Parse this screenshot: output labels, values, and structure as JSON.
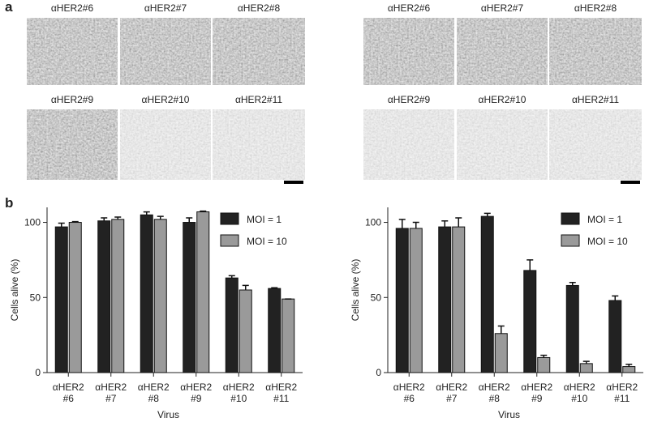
{
  "panel_labels": [
    "a",
    "b"
  ],
  "micrographs": {
    "left": [
      "αHER2#6",
      "αHER2#7",
      "αHER2#8",
      "αHER2#9",
      "αHER2#10",
      "αHER2#11"
    ],
    "right": [
      "αHER2#6",
      "αHER2#7",
      "αHER2#8",
      "αHER2#9",
      "αHER2#10",
      "αHER2#11"
    ]
  },
  "chart_data": [
    {
      "type": "bar",
      "ylabel": "Cells alive (%)",
      "xlabel": "Virus",
      "categories": [
        "αHER2\n#6",
        "αHER2\n#7",
        "αHER2\n#8",
        "αHER2\n#9",
        "αHER2\n#10",
        "αHER2\n#11"
      ],
      "series": [
        {
          "name": "MOI = 1",
          "color": "#222222",
          "values": [
            97,
            101,
            105,
            100,
            63,
            56
          ],
          "errors": [
            2.5,
            2,
            2,
            3,
            1.5,
            0.5
          ]
        },
        {
          "name": "MOI = 10",
          "color": "#9a9a9a",
          "values": [
            100,
            102,
            102,
            107,
            55,
            49
          ],
          "errors": [
            0.5,
            1.5,
            2,
            0.5,
            3,
            0
          ]
        }
      ],
      "ylim": [
        0,
        110
      ],
      "yticks": [
        0,
        50,
        100
      ],
      "legend": "upper right"
    },
    {
      "type": "bar",
      "ylabel": "Cells alive (%)",
      "xlabel": "Virus",
      "categories": [
        "αHER2\n#6",
        "αHER2\n#7",
        "αHER2\n#8",
        "αHER2\n#9",
        "αHER2\n#10",
        "αHER2\n#11"
      ],
      "series": [
        {
          "name": "MOI = 1",
          "color": "#222222",
          "values": [
            96,
            97,
            104,
            68,
            58,
            48
          ],
          "errors": [
            6,
            4,
            2,
            7,
            2,
            3
          ]
        },
        {
          "name": "MOI = 10",
          "color": "#9a9a9a",
          "values": [
            96,
            97,
            26,
            10,
            6,
            4
          ],
          "errors": [
            4,
            6,
            5,
            1.5,
            1.5,
            1.5
          ]
        }
      ],
      "ylim": [
        0,
        110
      ],
      "yticks": [
        0,
        50,
        100
      ],
      "legend": "upper right"
    }
  ]
}
